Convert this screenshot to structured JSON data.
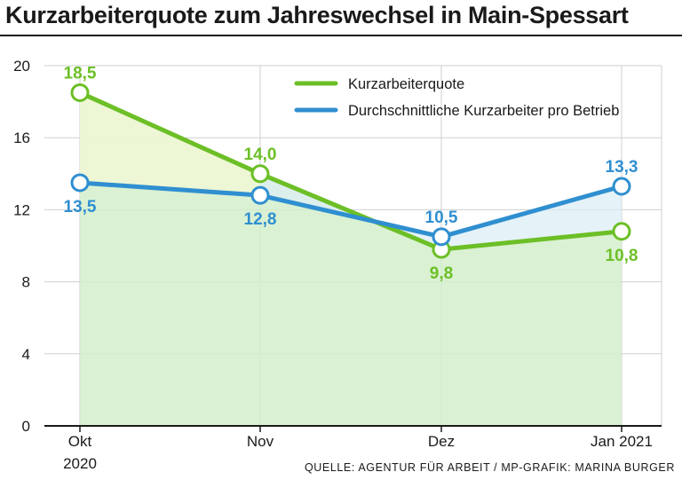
{
  "chart_data": {
    "type": "line",
    "title": "Kurzarbeiterquote zum Jahreswechsel in Main-Spessart",
    "categories": [
      {
        "line1": "Okt",
        "line2": "2020"
      },
      {
        "line1": "Nov",
        "line2": ""
      },
      {
        "line1": "Dez",
        "line2": ""
      },
      {
        "line1": "Jan 2021",
        "line2": ""
      }
    ],
    "ylim": [
      0,
      20
    ],
    "yticks": [
      "0",
      "4",
      "8",
      "12",
      "16",
      "20"
    ],
    "grid": true,
    "series": [
      {
        "name": "Kurzarbeiterquote",
        "color": "#6cbf26",
        "fill": "#d4efcb",
        "values": [
          18.5,
          14.0,
          9.8,
          10.8
        ],
        "labels": [
          "18,5",
          "14,0",
          "9,8",
          "10,8"
        ],
        "label_pos": [
          "above",
          "above",
          "below",
          "below"
        ]
      },
      {
        "name": "Durchschnittliche Kurzarbeiter pro Betrieb",
        "color": "#2f8fd0",
        "fill": "#dceef6",
        "values": [
          13.5,
          12.8,
          10.5,
          13.3
        ],
        "labels": [
          "13,5",
          "12,8",
          "10,5",
          "13,3"
        ],
        "label_pos": [
          "below",
          "below",
          "above",
          "above"
        ]
      }
    ],
    "legend": "top-right",
    "source": "QUELLE: AGENTUR FÜR ARBEIT / MP-GRAFIK: MARINA BURGER"
  }
}
